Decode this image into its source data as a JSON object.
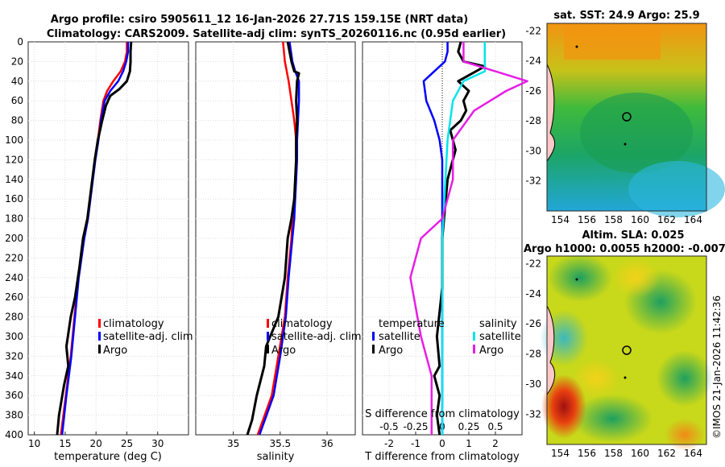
{
  "header": {
    "title_line1": "Argo profile: csiro 5905611_12 16-Jan-2026 27.71S 159.15E (NRT data)",
    "title_line2": "Climatology: CARS2009. Satellite-adj clim: synTS_20260116.nc (0.95d earlier)"
  },
  "credit": "©IMOS 21-Jan-2026 11:42:36",
  "colors": {
    "climatology": "#ff0000",
    "satellite": "#0000ff",
    "argo": "#000000",
    "sal_sat": "#00e5ee",
    "sal_argo": "#e61ee6"
  },
  "depth_ticks": [
    "0",
    "20",
    "40",
    "60",
    "80",
    "100",
    "120",
    "140",
    "160",
    "180",
    "200",
    "220",
    "240",
    "260",
    "280",
    "300",
    "320",
    "340",
    "360",
    "380",
    "400"
  ],
  "chart_data": [
    {
      "type": "line",
      "id": "temperature",
      "xlabel": "temperature (deg C)",
      "ylabel": "depth",
      "xlim": [
        9,
        35
      ],
      "ylim": [
        400,
        0
      ],
      "xticks": [
        "10",
        "15",
        "20",
        "25",
        "30"
      ],
      "legend": [
        "climatology",
        "satellite-adj. clim",
        "Argo"
      ],
      "series": [
        {
          "name": "climatology",
          "color": "#ff0000",
          "points": [
            [
              25.0,
              0
            ],
            [
              25.0,
              10
            ],
            [
              24.7,
              20
            ],
            [
              24.0,
              30
            ],
            [
              22.8,
              40
            ],
            [
              21.8,
              50
            ],
            [
              21.2,
              60
            ],
            [
              20.7,
              80
            ],
            [
              20.3,
              100
            ],
            [
              19.8,
              120
            ],
            [
              19.2,
              150
            ],
            [
              18.6,
              180
            ],
            [
              18.0,
              200
            ],
            [
              17.1,
              240
            ],
            [
              16.5,
              280
            ],
            [
              15.9,
              320
            ],
            [
              15.1,
              360
            ],
            [
              14.3,
              400
            ]
          ]
        },
        {
          "name": "satellite-adj. clim",
          "color": "#0000ff",
          "points": [
            [
              25.2,
              0
            ],
            [
              25.2,
              10
            ],
            [
              24.9,
              20
            ],
            [
              24.4,
              30
            ],
            [
              23.6,
              40
            ],
            [
              22.3,
              50
            ],
            [
              21.4,
              60
            ],
            [
              20.8,
              80
            ],
            [
              20.4,
              100
            ],
            [
              19.9,
              120
            ],
            [
              19.3,
              150
            ],
            [
              18.7,
              180
            ],
            [
              18.1,
              200
            ],
            [
              17.2,
              240
            ],
            [
              16.6,
              280
            ],
            [
              16.0,
              320
            ],
            [
              15.2,
              360
            ],
            [
              14.5,
              400
            ]
          ]
        },
        {
          "name": "Argo",
          "color": "#000000",
          "points": [
            [
              25.7,
              0
            ],
            [
              25.6,
              10
            ],
            [
              25.6,
              20
            ],
            [
              25.5,
              30
            ],
            [
              25.0,
              40
            ],
            [
              23.8,
              48
            ],
            [
              22.3,
              55
            ],
            [
              21.6,
              65
            ],
            [
              21.0,
              80
            ],
            [
              20.3,
              100
            ],
            [
              19.8,
              120
            ],
            [
              19.2,
              150
            ],
            [
              18.6,
              180
            ],
            [
              17.9,
              200
            ],
            [
              17.3,
              230
            ],
            [
              16.6,
              260
            ],
            [
              15.9,
              280
            ],
            [
              15.2,
              310
            ],
            [
              15.5,
              330
            ],
            [
              14.8,
              350
            ],
            [
              14.0,
              380
            ],
            [
              13.7,
              400
            ]
          ]
        }
      ]
    },
    {
      "type": "line",
      "id": "salinity",
      "xlabel": "salinity",
      "ylabel": "depth",
      "xlim": [
        34.6,
        36.3
      ],
      "ylim": [
        400,
        0
      ],
      "xticks": [
        "35",
        "35.5",
        "36"
      ],
      "legend": [
        "climatology",
        "satellite-adj. clim",
        "Argo"
      ],
      "series": [
        {
          "name": "climatology",
          "color": "#ff0000",
          "points": [
            [
              35.53,
              0
            ],
            [
              35.55,
              20
            ],
            [
              35.59,
              40
            ],
            [
              35.62,
              60
            ],
            [
              35.65,
              80
            ],
            [
              35.67,
              100
            ],
            [
              35.67,
              120
            ],
            [
              35.66,
              140
            ],
            [
              35.65,
              160
            ],
            [
              35.63,
              180
            ],
            [
              35.62,
              200
            ],
            [
              35.58,
              240
            ],
            [
              35.55,
              280
            ],
            [
              35.48,
              320
            ],
            [
              35.41,
              360
            ],
            [
              35.26,
              400
            ]
          ]
        },
        {
          "name": "satellite-adj. clim",
          "color": "#0000ff",
          "points": [
            [
              35.6,
              0
            ],
            [
              35.63,
              20
            ],
            [
              35.66,
              30
            ],
            [
              35.7,
              40
            ],
            [
              35.7,
              60
            ],
            [
              35.69,
              80
            ],
            [
              35.68,
              100
            ],
            [
              35.68,
              120
            ],
            [
              35.67,
              140
            ],
            [
              35.66,
              160
            ],
            [
              35.65,
              180
            ],
            [
              35.63,
              200
            ],
            [
              35.59,
              240
            ],
            [
              35.56,
              280
            ],
            [
              35.5,
              320
            ],
            [
              35.43,
              360
            ],
            [
              35.28,
              400
            ]
          ]
        },
        {
          "name": "Argo",
          "color": "#000000",
          "points": [
            [
              35.58,
              0
            ],
            [
              35.62,
              20
            ],
            [
              35.65,
              30
            ],
            [
              35.7,
              32
            ],
            [
              35.68,
              40
            ],
            [
              35.67,
              60
            ],
            [
              35.68,
              80
            ],
            [
              35.67,
              100
            ],
            [
              35.67,
              120
            ],
            [
              35.66,
              140
            ],
            [
              35.65,
              160
            ],
            [
              35.62,
              180
            ],
            [
              35.58,
              200
            ],
            [
              35.55,
              240
            ],
            [
              35.48,
              280
            ],
            [
              35.35,
              310
            ],
            [
              35.33,
              330
            ],
            [
              35.25,
              360
            ],
            [
              35.2,
              385
            ],
            [
              35.15,
              400
            ]
          ]
        }
      ]
    },
    {
      "type": "line",
      "id": "difference",
      "xlabel": "T difference from climatology",
      "xlabel_top": "S difference from climatology",
      "ylabel": "depth",
      "xlim": [
        -3,
        3
      ],
      "ylim": [
        400,
        0
      ],
      "xticks": [
        "-2",
        "-1",
        "0",
        "1",
        "2"
      ],
      "xticks_top": [
        "-0.5",
        "-0.25",
        "0",
        "0.25",
        "0.5"
      ],
      "legend_headers": [
        "temperature",
        "salinity"
      ],
      "legend": [
        "satellite",
        "Argo",
        "satellite",
        "Argo"
      ],
      "series": [
        {
          "name": "temperature satellite",
          "color": "#0000ff",
          "points": [
            [
              0.2,
              0
            ],
            [
              0.2,
              10
            ],
            [
              0.1,
              20
            ],
            [
              -0.7,
              40
            ],
            [
              -0.6,
              60
            ],
            [
              -0.3,
              80
            ],
            [
              -0.1,
              100
            ],
            [
              0,
              120
            ],
            [
              0,
              200
            ],
            [
              0,
              300
            ],
            [
              0,
              400
            ]
          ]
        },
        {
          "name": "temperature Argo",
          "color": "#000000",
          "points": [
            [
              0.7,
              0
            ],
            [
              0.6,
              10
            ],
            [
              0.8,
              20
            ],
            [
              1.6,
              25
            ],
            [
              0.6,
              40
            ],
            [
              1.0,
              50
            ],
            [
              0.8,
              60
            ],
            [
              0.9,
              70
            ],
            [
              0.7,
              80
            ],
            [
              0.3,
              90
            ],
            [
              0.5,
              110
            ],
            [
              0.2,
              140
            ],
            [
              0.1,
              170
            ],
            [
              0.0,
              200
            ],
            [
              0.0,
              250
            ],
            [
              -0.2,
              300
            ],
            [
              -0.1,
              330
            ],
            [
              -0.3,
              340
            ],
            [
              -0.1,
              360
            ],
            [
              -0.2,
              380
            ],
            [
              -0.1,
              400
            ]
          ]
        },
        {
          "name": "salinity satellite",
          "color": "#00e5ee",
          "points": [
            [
              0.4,
              0
            ],
            [
              0.4,
              20
            ],
            [
              0.4,
              30
            ],
            [
              0.2,
              40
            ],
            [
              0.1,
              60
            ],
            [
              0.05,
              100
            ],
            [
              0,
              200
            ],
            [
              0,
              400
            ]
          ]
        },
        {
          "name": "salinity Argo",
          "color": "#e61ee6",
          "points": [
            [
              0.2,
              0
            ],
            [
              0.2,
              20
            ],
            [
              0.5,
              30
            ],
            [
              0.8,
              40
            ],
            [
              0.6,
              50
            ],
            [
              0.3,
              70
            ],
            [
              0.1,
              100
            ],
            [
              0.1,
              140
            ],
            [
              0,
              180
            ],
            [
              -0.2,
              200
            ],
            [
              -0.3,
              240
            ],
            [
              -0.2,
              300
            ],
            [
              -0.1,
              340
            ],
            [
              -0.1,
              400
            ]
          ]
        }
      ]
    },
    {
      "type": "heatmap",
      "id": "sst-map",
      "title": "sat. SST: 24.9 Argo: 25.9",
      "xticks": [
        "154",
        "156",
        "158",
        "160",
        "162",
        "164"
      ],
      "yticks": [
        "-22",
        "-24",
        "-26",
        "-28",
        "-30",
        "-32"
      ],
      "xlim": [
        153,
        165
      ],
      "ylim": [
        -34,
        -21.5
      ]
    },
    {
      "type": "heatmap",
      "id": "sla-map",
      "title": "Altim. SLA: 0.025",
      "subtitle": "Argo h1000: 0.0055 h2000: -0.007",
      "xticks": [
        "154",
        "156",
        "158",
        "160",
        "162",
        "164"
      ],
      "yticks": [
        "-22",
        "-24",
        "-26",
        "-28",
        "-30",
        "-32"
      ],
      "xlim": [
        153,
        165
      ],
      "ylim": [
        -34,
        -21.5
      ]
    }
  ]
}
